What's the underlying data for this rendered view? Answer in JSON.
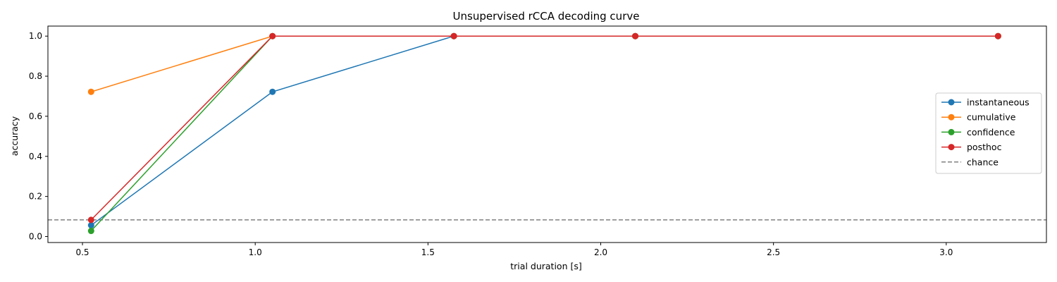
{
  "chart_data": {
    "type": "line",
    "title": "Unsupervised rCCA decoding curve",
    "xlabel": "trial duration [s]",
    "ylabel": "accuracy",
    "xlim": [
      0.4,
      3.29
    ],
    "ylim": [
      -0.03,
      1.05
    ],
    "xticks": [
      0.5,
      1.0,
      1.5,
      2.0,
      2.5,
      3.0
    ],
    "xtick_labels": [
      "0.5",
      "1.0",
      "1.5",
      "2.0",
      "2.5",
      "3.0"
    ],
    "yticks": [
      0.0,
      0.2,
      0.4,
      0.6,
      0.8,
      1.0
    ],
    "ytick_labels": [
      "0.0",
      "0.2",
      "0.4",
      "0.6",
      "0.8",
      "1.0"
    ],
    "grid": false,
    "legend_position": "center-right",
    "x": [
      0.525,
      1.05,
      1.575,
      2.1,
      3.15
    ],
    "series": [
      {
        "name": "instantaneous",
        "color": "#1f77b4",
        "values": [
          0.056,
          0.722,
          1.0,
          1.0,
          1.0
        ]
      },
      {
        "name": "cumulative",
        "color": "#ff7f0e",
        "values": [
          0.722,
          1.0,
          1.0,
          1.0,
          1.0
        ]
      },
      {
        "name": "confidence",
        "color": "#2ca02c",
        "values": [
          0.028,
          1.0,
          1.0,
          1.0,
          1.0
        ]
      },
      {
        "name": "posthoc",
        "color": "#d62728",
        "values": [
          0.083,
          1.0,
          1.0,
          1.0,
          1.0
        ]
      }
    ],
    "reference_line": {
      "name": "chance",
      "value": 0.083,
      "color": "#808080",
      "style": "dashed"
    }
  }
}
